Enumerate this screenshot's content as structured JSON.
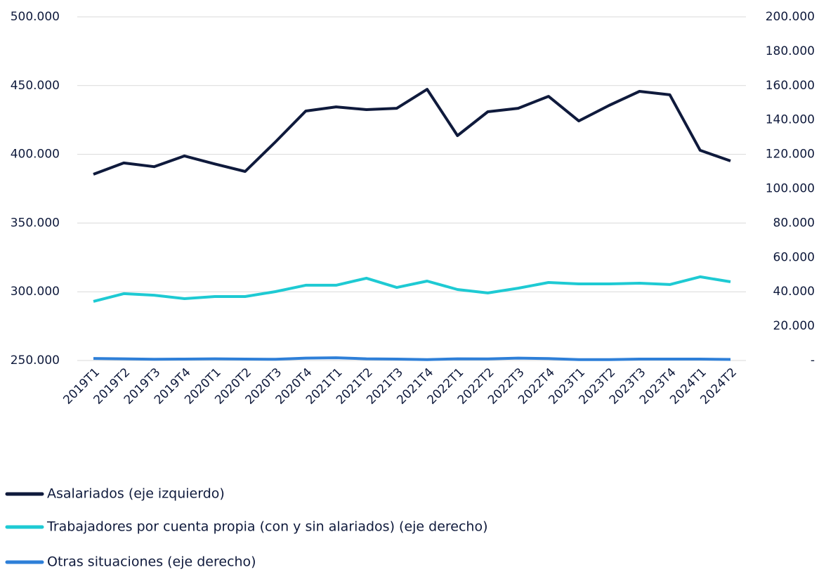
{
  "chart_data": {
    "type": "line",
    "categories": [
      "2019T1",
      "2019T2",
      "2019T3",
      "2019T4",
      "2020T1",
      "2020T2",
      "2020T3",
      "2020T4",
      "2021T1",
      "2021T2",
      "2021T3",
      "2021T4",
      "2022T1",
      "2022T2",
      "2022T3",
      "2022T4",
      "2023T1",
      "2023T2",
      "2023T3",
      "2023T4",
      "2024T1",
      "2024T2"
    ],
    "series": [
      {
        "name": "Asalariados (eje izquierdo)",
        "color": "#0f1a3c",
        "values": [
          385500,
          393700,
          391000,
          398800,
          393000,
          387500,
          409000,
          431500,
          434500,
          432500,
          433500,
          447300,
          413600,
          431000,
          433500,
          442200,
          424300,
          435600,
          445800,
          443300,
          402900,
          395200
        ]
      },
      {
        "name": "Trabajadores por cuenta propia (con y sin alariados) (eje derecho)",
        "color": "#1ecad3",
        "axis": "y2",
        "values": [
          34400,
          38900,
          38000,
          36000,
          37200,
          37200,
          40100,
          43800,
          43800,
          47900,
          42500,
          46200,
          41300,
          39300,
          42100,
          45400,
          44600,
          44600,
          45000,
          44200,
          48700,
          45800
        ]
      },
      {
        "name": "Otras situaciones (eje derecho)",
        "color": "#2e7fd8",
        "axis": "y2",
        "values": [
          1200,
          1000,
          700,
          800,
          1000,
          800,
          700,
          1400,
          1600,
          1000,
          800,
          500,
          1000,
          900,
          1400,
          1100,
          500,
          500,
          800,
          800,
          800,
          600
        ]
      }
    ],
    "ylim": [
      250000,
      500000
    ],
    "yticks": [
      {
        "value": 250000,
        "label": "250.000"
      },
      {
        "value": 300000,
        "label": "300.000"
      },
      {
        "value": 350000,
        "label": "350.000"
      },
      {
        "value": 400000,
        "label": "400.000"
      },
      {
        "value": 450000,
        "label": "450.000"
      },
      {
        "value": 500000,
        "label": "500.000"
      }
    ],
    "y2lim": [
      0,
      200000
    ],
    "y2ticks": [
      {
        "value": 0,
        "label": "-"
      },
      {
        "value": 20000,
        "label": "20.000"
      },
      {
        "value": 40000,
        "label": "40.000"
      },
      {
        "value": 60000,
        "label": "60.000"
      },
      {
        "value": 80000,
        "label": "80.000"
      },
      {
        "value": 100000,
        "label": "100.000"
      },
      {
        "value": 120000,
        "label": "120.000"
      },
      {
        "value": 140000,
        "label": "140.000"
      },
      {
        "value": 160000,
        "label": "160.000"
      },
      {
        "value": 180000,
        "label": "180.000"
      },
      {
        "value": 200000,
        "label": "200.000"
      }
    ],
    "grid": true,
    "legend": "bottom"
  }
}
